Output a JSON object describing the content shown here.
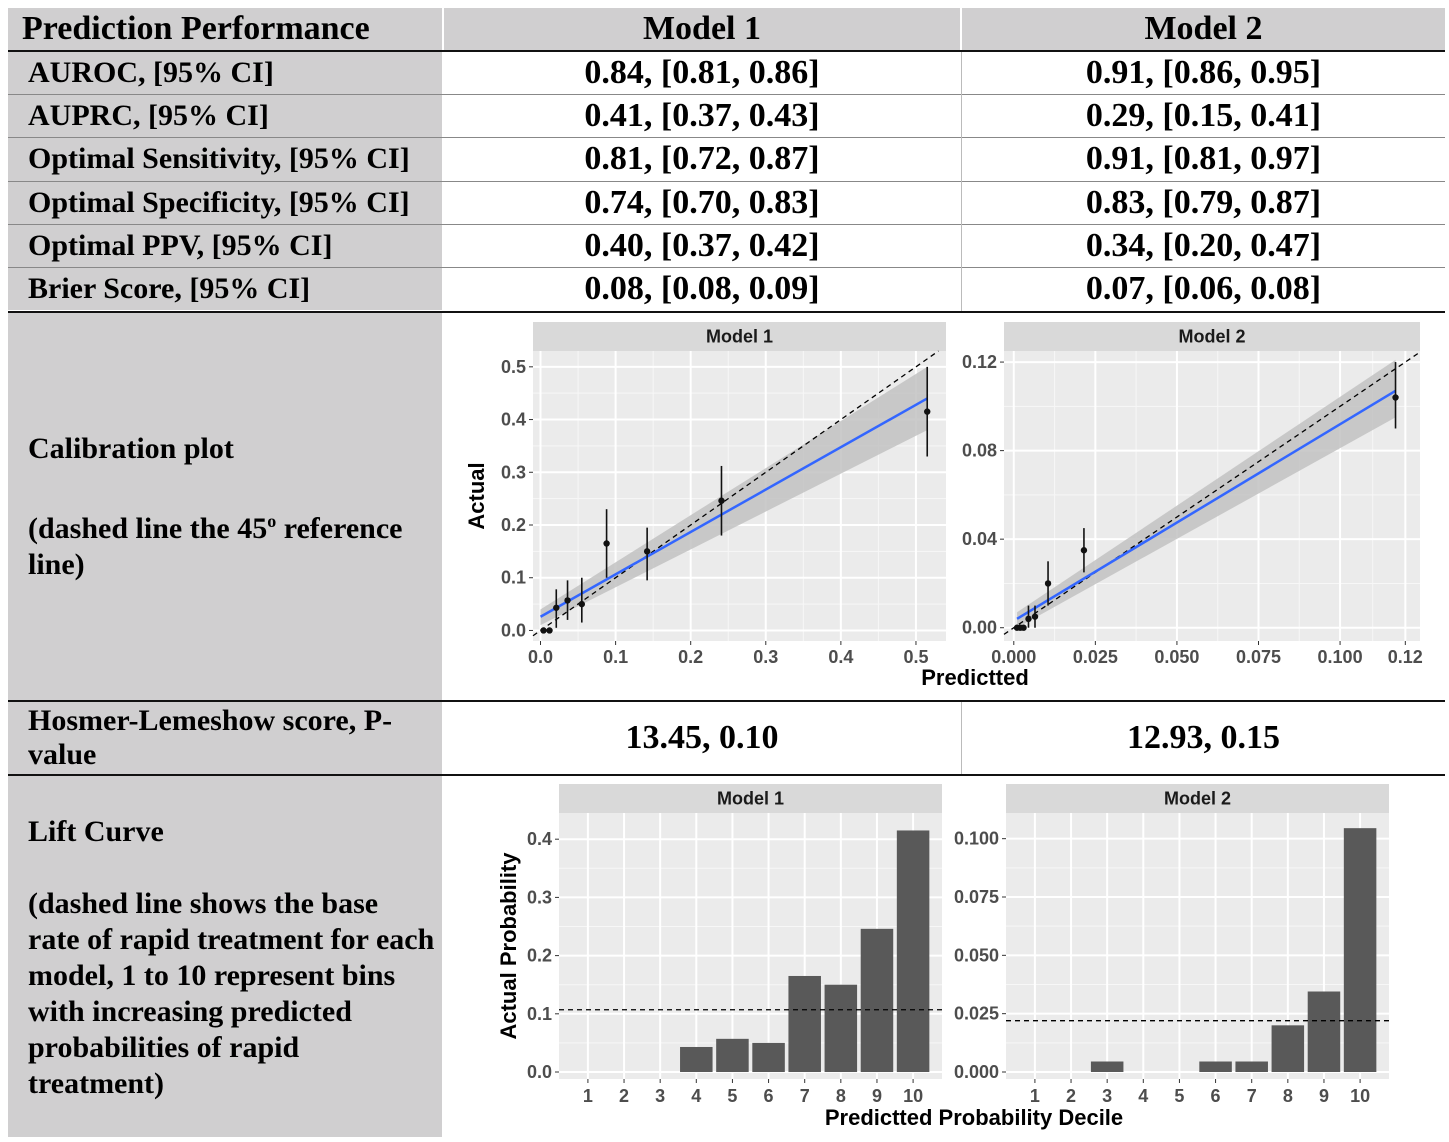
{
  "header": {
    "col0": "Prediction Performance",
    "col1": "Model 1",
    "col2": "Model 2"
  },
  "rows": [
    {
      "label": "AUROC, [95% CI]",
      "m1": "0.84, [0.81, 0.86]",
      "m2": "0.91, [0.86, 0.95]"
    },
    {
      "label": "AUPRC, [95% CI]",
      "m1": "0.41, [0.37, 0.43]",
      "m2": "0.29, [0.15, 0.41]"
    },
    {
      "label": "Optimal Sensitivity, [95% CI]",
      "m1": "0.81, [0.72, 0.87]",
      "m2": "0.91, [0.81, 0.97]"
    },
    {
      "label": "Optimal Specificity, [95% CI]",
      "m1": "0.74, [0.70, 0.83]",
      "m2": "0.83, [0.79, 0.87]"
    },
    {
      "label": "Optimal PPV, [95% CI]",
      "m1": "0.40, [0.37, 0.42]",
      "m2": "0.34, [0.20, 0.47]"
    },
    {
      "label": "Brier Score, [95% CI]",
      "m1": "0.08, [0.08, 0.09]",
      "m2": "0.07, [0.06, 0.08]"
    }
  ],
  "calibration": {
    "label": "Calibration plot",
    "note_pre": "(dashed line the 45",
    "note_sup": "o",
    "note_post": " reference line)"
  },
  "hosmer": {
    "label": "Hosmer-Lemeshow score, P-value",
    "m1": "13.45, 0.10",
    "m2": "12.93, 0.15"
  },
  "lift": {
    "label": "Lift Curve",
    "note": "(dashed line shows the base rate of rapid treatment for each model, 1 to 10 represent bins with increasing predicted probabilities of rapid treatment)"
  },
  "chart_data": [
    {
      "type": "scatter",
      "title": "Model 1",
      "xlabel": "Predictted",
      "ylabel": "Actual",
      "xlim": [
        -0.01,
        0.54
      ],
      "ylim": [
        -0.02,
        0.53
      ],
      "xticks": [
        "0.0",
        "0.1",
        "0.2",
        "0.3",
        "0.4",
        "0.5"
      ],
      "xtick_values": [
        0,
        0.1,
        0.2,
        0.3,
        0.4,
        0.5
      ],
      "yticks": [
        "0.0",
        "0.1",
        "0.2",
        "0.3",
        "0.4",
        "0.5"
      ],
      "ytick_values": [
        0,
        0.1,
        0.2,
        0.3,
        0.4,
        0.5
      ],
      "points": [
        {
          "x": 0.004,
          "y": 0.0,
          "lo": 0.0,
          "hi": 0.0
        },
        {
          "x": 0.012,
          "y": 0.0,
          "lo": 0.0,
          "hi": 0.0
        },
        {
          "x": 0.021,
          "y": 0.043,
          "lo": 0.005,
          "hi": 0.078
        },
        {
          "x": 0.036,
          "y": 0.057,
          "lo": 0.02,
          "hi": 0.095
        },
        {
          "x": 0.055,
          "y": 0.05,
          "lo": 0.015,
          "hi": 0.1
        },
        {
          "x": 0.088,
          "y": 0.165,
          "lo": 0.1,
          "hi": 0.23
        },
        {
          "x": 0.142,
          "y": 0.15,
          "lo": 0.095,
          "hi": 0.195
        },
        {
          "x": 0.241,
          "y": 0.246,
          "lo": 0.18,
          "hi": 0.312
        },
        {
          "x": 0.515,
          "y": 0.415,
          "lo": 0.33,
          "hi": 0.5
        }
      ],
      "fit": {
        "x0": 0.0,
        "y0": 0.026,
        "x1": 0.515,
        "y1": 0.44
      },
      "band": {
        "lo_start": 0.01,
        "hi_start": 0.04,
        "lo_end": 0.38,
        "hi_end": 0.5
      },
      "reference": "45-degree dashed line",
      "grid": true
    },
    {
      "type": "scatter",
      "title": "Model 2",
      "xlabel": "Predictted",
      "ylabel": "Actual",
      "xlim": [
        -0.003,
        0.1245
      ],
      "ylim": [
        -0.006,
        0.125
      ],
      "xticks": [
        "0.000",
        "0.025",
        "0.050",
        "0.075",
        "0.100",
        "0.12"
      ],
      "xtick_values": [
        0,
        0.025,
        0.05,
        0.075,
        0.1,
        0.12
      ],
      "yticks": [
        "0.00",
        "0.04",
        "0.08",
        "0.12"
      ],
      "ytick_values": [
        0,
        0.04,
        0.08,
        0.12
      ],
      "points": [
        {
          "x": 0.001,
          "y": 0.0,
          "lo": 0.0,
          "hi": 0.0
        },
        {
          "x": 0.002,
          "y": 0.0,
          "lo": 0.0,
          "hi": 0.0
        },
        {
          "x": 0.003,
          "y": 0.0,
          "lo": 0.0,
          "hi": 0.0
        },
        {
          "x": 0.0045,
          "y": 0.004,
          "lo": 0.0,
          "hi": 0.01
        },
        {
          "x": 0.0065,
          "y": 0.005,
          "lo": 0.0,
          "hi": 0.01
        },
        {
          "x": 0.0105,
          "y": 0.02,
          "lo": 0.01,
          "hi": 0.03
        },
        {
          "x": 0.0215,
          "y": 0.035,
          "lo": 0.025,
          "hi": 0.045
        },
        {
          "x": 0.117,
          "y": 0.104,
          "lo": 0.09,
          "hi": 0.12
        }
      ],
      "fit": {
        "x0": 0.001,
        "y0": 0.004,
        "x1": 0.117,
        "y1": 0.107
      },
      "band": {
        "lo_start": 0.0,
        "hi_start": 0.007,
        "lo_end": 0.095,
        "hi_end": 0.121
      },
      "reference": "45-degree dashed line",
      "grid": true
    },
    {
      "type": "bar",
      "title": "Model 1",
      "xlabel": "Predictted Probability Decile",
      "ylabel": "Actual Probability",
      "categories": [
        "1",
        "2",
        "3",
        "4",
        "5",
        "6",
        "7",
        "8",
        "9",
        "10"
      ],
      "values": [
        0,
        0,
        0,
        0.043,
        0.057,
        0.05,
        0.165,
        0.15,
        0.246,
        0.415
      ],
      "ylim": [
        -0.012,
        0.445
      ],
      "yticks": [
        "0.0",
        "0.1",
        "0.2",
        "0.3",
        "0.4"
      ],
      "ytick_values": [
        0,
        0.1,
        0.2,
        0.3,
        0.4
      ],
      "baseline": 0.107,
      "grid": true
    },
    {
      "type": "bar",
      "title": "Model 2",
      "xlabel": "Predictted Probability Decile",
      "ylabel": "Actual Probability",
      "categories": [
        "1",
        "2",
        "3",
        "4",
        "5",
        "6",
        "7",
        "8",
        "9",
        "10"
      ],
      "values": [
        0,
        0,
        0.0045,
        0,
        0,
        0.0045,
        0.0045,
        0.02,
        0.0345,
        0.1045
      ],
      "ylim": [
        -0.003,
        0.111
      ],
      "yticks": [
        "0.000",
        "0.025",
        "0.050",
        "0.075",
        "0.100"
      ],
      "ytick_values": [
        0,
        0.025,
        0.05,
        0.075,
        0.1
      ],
      "baseline": 0.022,
      "grid": true
    }
  ],
  "colors": {
    "label_bg": "#d0cfd0",
    "panel_bg": "#ebebeb",
    "strip_bg": "#d9d9d9",
    "fit_line": "#3366ff",
    "band": "#c2c2c2",
    "bar": "#595959",
    "point": "#111111"
  }
}
